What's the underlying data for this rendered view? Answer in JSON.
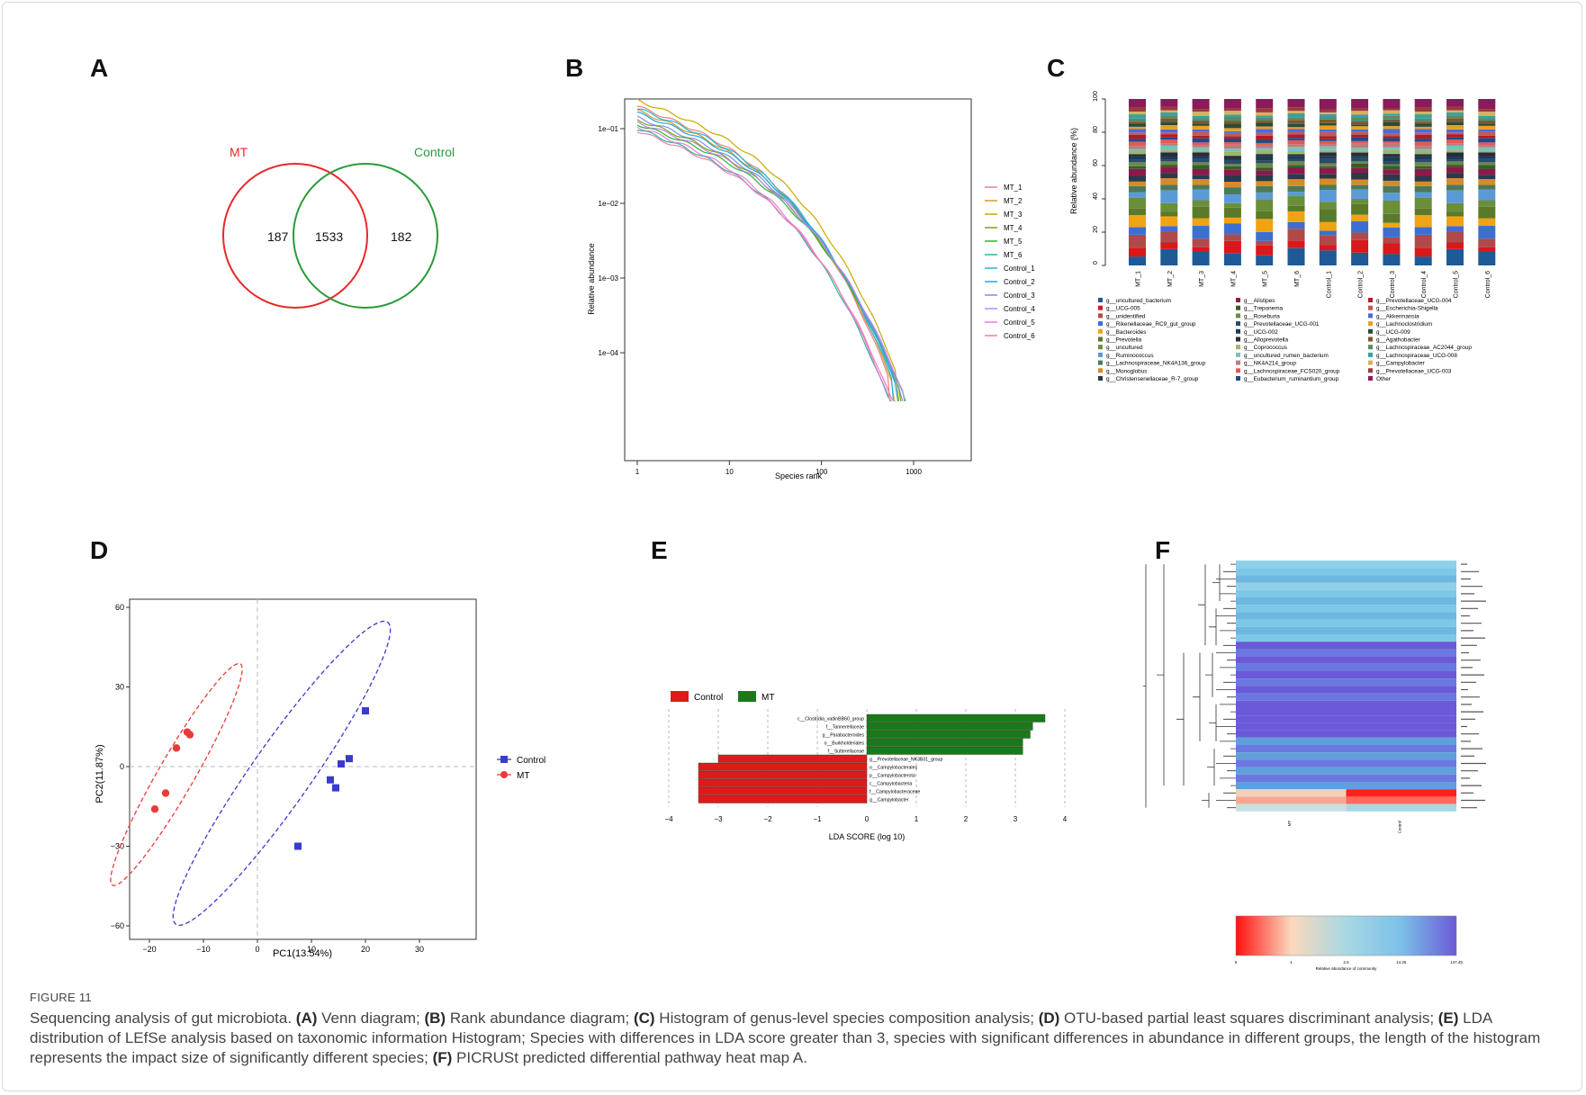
{
  "panels": {
    "A": "A",
    "B": "B",
    "C": "C",
    "D": "D",
    "E": "E",
    "F": "F"
  },
  "venn": {
    "left_label": "MT",
    "right_label": "Control",
    "left_only": "187",
    "shared": "1533",
    "right_only": "182",
    "left_color": "#e8282a",
    "right_color": "#2a9a3a"
  },
  "rank_abundance": {
    "xlabel": "Species rank",
    "ylabel": "Relative abundance",
    "x_ticks": [
      "1",
      "10",
      "100",
      "1000"
    ],
    "y_ticks": [
      "1e−01",
      "1e−02",
      "1e−03",
      "1e−04"
    ],
    "legend": [
      {
        "name": "MT_1",
        "color": "#f08080"
      },
      {
        "name": "MT_2",
        "color": "#e0952a"
      },
      {
        "name": "MT_3",
        "color": "#c8a800"
      },
      {
        "name": "MT_4",
        "color": "#8aa000"
      },
      {
        "name": "MT_5",
        "color": "#2cb32c"
      },
      {
        "name": "MT_6",
        "color": "#2cb890"
      },
      {
        "name": "Control_1",
        "color": "#22bbcc"
      },
      {
        "name": "Control_2",
        "color": "#1aa8e0"
      },
      {
        "name": "Control_3",
        "color": "#7a8ef0"
      },
      {
        "name": "Control_4",
        "color": "#b88af0"
      },
      {
        "name": "Control_5",
        "color": "#e77ae0"
      },
      {
        "name": "Control_6",
        "color": "#f47ab0"
      }
    ]
  },
  "composition": {
    "ylabel": "Relative abundance (%)",
    "y_ticks": [
      "0",
      "20",
      "40",
      "60",
      "80",
      "100"
    ],
    "samples": [
      "MT_1",
      "MT_2",
      "MT_3",
      "MT_4",
      "MT_5",
      "MT_6",
      "Control_1",
      "Control_2",
      "Control_3",
      "Control_4",
      "Control_5",
      "Control_6"
    ],
    "legend_col1": [
      "g__uncultured_bacterium",
      "g__UCG-005",
      "g__unidentified",
      "g__Rikenellaceae_RC9_gut_group",
      "g__Bacteroides",
      "g__Prevotella",
      "g__uncultured",
      "g__Ruminococcus",
      "g__Lachnospiraceae_NK4A136_group",
      "g__Monoglobus",
      "g__Christensenellaceae_R-7_group"
    ],
    "legend_col2": [
      "g__Alistipes",
      "g__Treponema",
      "g__Roseburia",
      "g__Prevotellaceae_UCG-001",
      "g__UCG-002",
      "g__Alloprevotella",
      "g__Coprococcus",
      "g__uncultured_rumen_bacterium",
      "g__NK4A214_group",
      "g__Lachnospiraceae_FCS020_group",
      "g__Eubacterium_ruminantium_group"
    ],
    "legend_col3": [
      "g__Prevotellaceae_UCG-004",
      "g__Escherichia-Shigella",
      "g__Akkermansia",
      "g__Lachnoclostridium",
      "g__UCG-009",
      "g__Agathobacter",
      "g__Lachnospiraceae_AC2044_group",
      "g__Lachnospiraceae_UCG-008",
      "g__Campylobacter",
      "g__Prevotellaceae_UCG-003",
      "Other"
    ],
    "colors_col1": [
      "#1f5a96",
      "#d7191c",
      "#b04a4a",
      "#3d6fd0",
      "#f2a313",
      "#5a7a2a",
      "#6b8e3a",
      "#5b9bd5",
      "#4a7a5a",
      "#d88a2a",
      "#2a3a4a"
    ],
    "colors_col2": [
      "#8b1a4a",
      "#3a5a2a",
      "#6a8a4a",
      "#2a4a6a",
      "#1a3a5a",
      "#2a2a3a",
      "#9ab86a",
      "#7ac0c0",
      "#c07a7a",
      "#e05a5a",
      "#1f4a86"
    ],
    "colors_col3": [
      "#b01a2a",
      "#c05a5a",
      "#4a6ae0",
      "#e8a020",
      "#2a4a3a",
      "#7a5a2a",
      "#5a8a6a",
      "#3aa0a0",
      "#d8b060",
      "#9a3a3a",
      "#8b1a5a"
    ]
  },
  "pca": {
    "xlabel": "PC1(13.54%)",
    "ylabel": "PC2(11.87%)",
    "x_ticks": [
      "−20",
      "−10",
      "0",
      "10",
      "20",
      "30"
    ],
    "y_ticks": [
      "60",
      "30",
      "0",
      "−30",
      "−60"
    ],
    "legend": [
      {
        "name": "Control",
        "color": "#3a3ad0"
      },
      {
        "name": "MT",
        "color": "#e83a3a"
      }
    ],
    "control_points": [
      [
        20,
        21
      ],
      [
        17,
        3
      ],
      [
        15.5,
        1
      ],
      [
        14.5,
        -8
      ],
      [
        13.5,
        -5
      ],
      [
        7.5,
        -30
      ]
    ],
    "mt_points": [
      [
        -13,
        13
      ],
      [
        -12.5,
        12
      ],
      [
        -15,
        7
      ],
      [
        -17,
        -10
      ],
      [
        -19,
        -16
      ]
    ]
  },
  "lefse": {
    "legend": [
      {
        "name": "Control",
        "color": "#e01a1a"
      },
      {
        "name": "MT",
        "color": "#1a7a1a"
      }
    ],
    "xlabel": "LDA SCORE (log 10)",
    "x_ticks": [
      "−4",
      "−3",
      "−2",
      "−1",
      "0",
      "1",
      "2",
      "3",
      "4"
    ],
    "mt_bars": [
      {
        "label": "c__Clostridia_vadinBB60_group",
        "value": 3.6
      },
      {
        "label": "f__Tannerellaceae",
        "value": 3.35
      },
      {
        "label": "g__Parabacteroides",
        "value": 3.3
      },
      {
        "label": "o__Burkholderiales",
        "value": 3.15
      },
      {
        "label": "f__Sutterellaceae",
        "value": 3.15
      }
    ],
    "control_bars": [
      {
        "label": "g__Prevotellaceae_NK3B31_group",
        "value": -3.0
      },
      {
        "label": "o__Campylobacterales",
        "value": -3.4
      },
      {
        "label": "p__Campylobacterota",
        "value": -3.4
      },
      {
        "label": "c__Campylobacteria",
        "value": -3.4
      },
      {
        "label": "f__Campylobacteraceae",
        "value": -3.4
      },
      {
        "label": "g__Campylobacter",
        "value": -3.4
      }
    ]
  },
  "heatmap": {
    "columns": [
      "MT",
      "Control"
    ],
    "scale_ticks": [
      "0",
      "1",
      "2.6",
      "14.25",
      "147.45"
    ],
    "scale_caption": "Relative abundance of community"
  },
  "caption": {
    "label": "FIGURE 11",
    "title": "Sequencing analysis of gut microbiota.",
    "A_tag": "(A)",
    "A_text": " Venn diagram; ",
    "B_tag": "(B)",
    "B_text": " Rank abundance diagram; ",
    "C_tag": "(C)",
    "C_text": " Histogram of genus-level species composition analysis; ",
    "D_tag": "(D)",
    "D_text": " OTU-based partial least squares discriminant analysis; ",
    "E_tag": "(E)",
    "E_text": " LDA distribution of LEfSe analysis based on taxonomic information Histogram; Species with differences in LDA score greater than 3, species with significant differences in abundance in different groups, the length of the histogram represents the impact size of significantly different species; ",
    "F_tag": "(F)",
    "F_text": " PICRUSt predicted differential pathway heat map A."
  }
}
